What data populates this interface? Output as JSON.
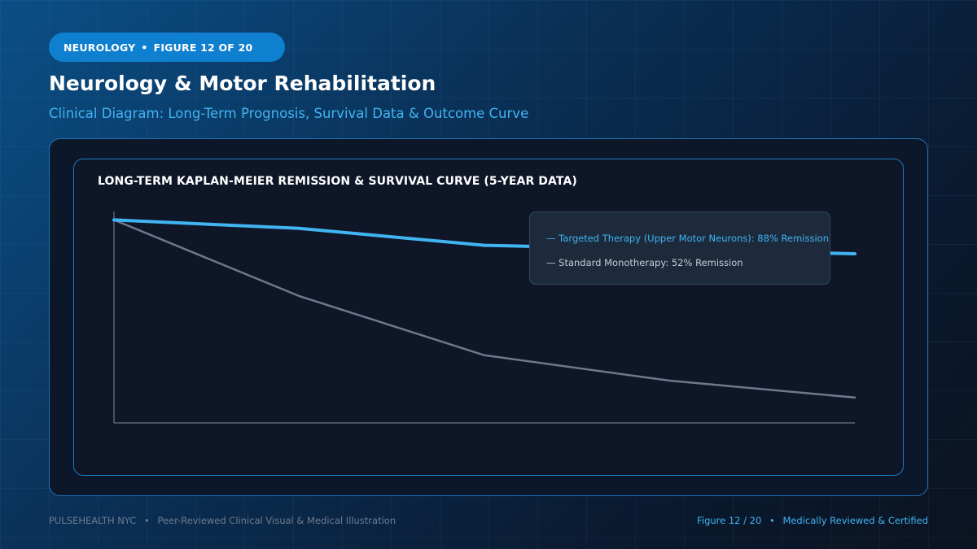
{
  "header": {
    "badge_category": "NEUROLOGY",
    "badge_figure": "FIGURE 12 OF 20",
    "title": "Neurology & Motor Rehabilitation",
    "subtitle": "Clinical Diagram: Long-Term Prognosis, Survival Data & Outcome Curve"
  },
  "chart_data": {
    "type": "line",
    "title": "LONG-TERM KAPLAN-MEIER REMISSION & SURVIVAL CURVE (5-YEAR DATA)",
    "xlabel": "",
    "ylabel": "",
    "x": [
      0,
      1,
      2,
      3,
      4
    ],
    "xlim": [
      0,
      4
    ],
    "ylim": [
      0,
      100
    ],
    "grid": false,
    "legend_position": "top-right",
    "series": [
      {
        "name": "Targeted Therapy (Upper Motor Neurons): 88% Remission",
        "color": "#41b4f2",
        "values": [
          96,
          92,
          84,
          82,
          80
        ]
      },
      {
        "name": "Standard Monotherapy: 52% Remission",
        "color": "#6d7a8c",
        "values": [
          96,
          60,
          32,
          20,
          12
        ]
      }
    ]
  },
  "colors": {
    "accent": "#41b4f2",
    "badge": "#0f7fd0",
    "panel_border": "#1f73b8"
  },
  "footer": {
    "brand": "PULSEHEALTH NYC",
    "caption": "Peer-Reviewed Clinical Visual & Medical Illustration",
    "figure": "Figure 12 / 20",
    "certification": "Medically Reviewed & Certified"
  }
}
